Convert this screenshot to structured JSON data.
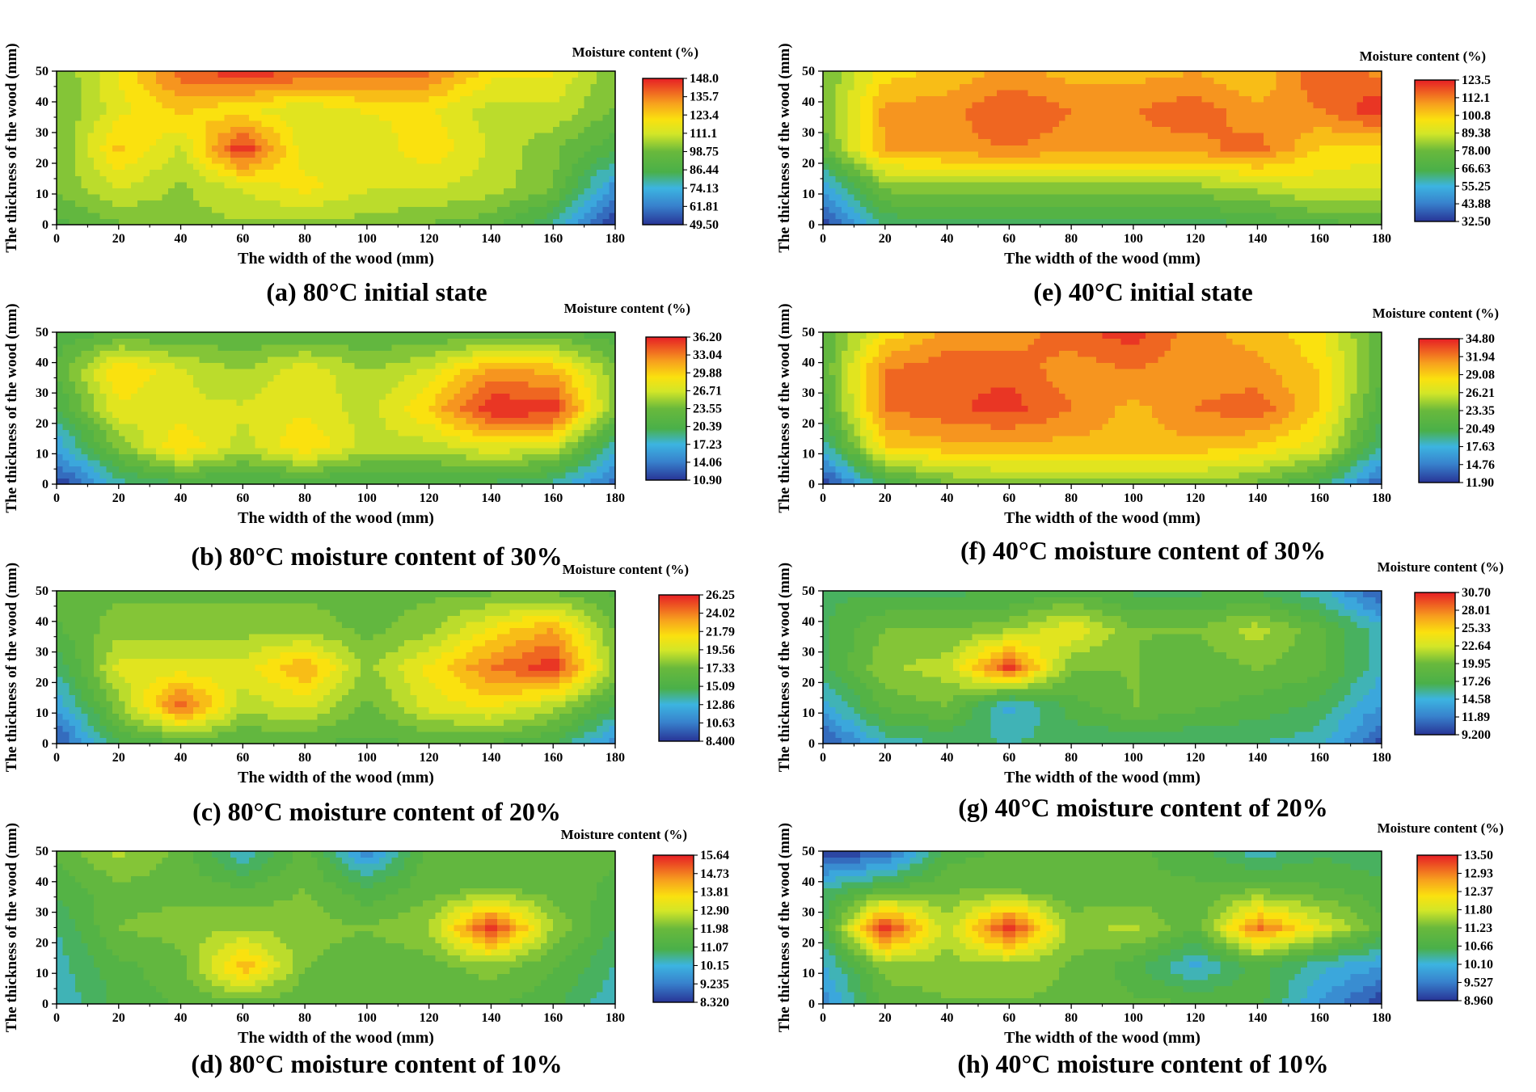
{
  "figure": {
    "x_unit": "mm",
    "y_unit": "mm"
  },
  "chart_data": [
    {
      "type": "heatmap",
      "id": "a",
      "caption": "(a) 80°C  initial state",
      "xlabel": "The width of the wood (mm)",
      "ylabel": "The thickness of the wood (mm)",
      "colorbar_title": "Moisture content (%)",
      "xlim": [
        0,
        180
      ],
      "ylim": [
        0,
        50
      ],
      "x_ticks": [
        0,
        20,
        40,
        60,
        80,
        100,
        120,
        140,
        160,
        180
      ],
      "y_ticks": [
        0,
        10,
        20,
        30,
        40,
        50
      ],
      "colorbar_labels": [
        "148.0",
        "135.7",
        "123.4",
        "111.1",
        "98.75",
        "86.44",
        "74.13",
        "61.81",
        "49.50"
      ],
      "x": [
        0,
        20,
        40,
        60,
        80,
        100,
        120,
        140,
        160,
        180
      ],
      "y": [
        0,
        12.5,
        25,
        37.5,
        50
      ],
      "z": [
        [
          90,
          98,
          102,
          104,
          103,
          102,
          98,
          95,
          80,
          48
        ],
        [
          100,
          112,
          104,
          112,
          120,
          112,
          112,
          108,
          100,
          65
        ],
        [
          98,
          125,
          110,
          148,
          112,
          112,
          122,
          110,
          100,
          88
        ],
        [
          98,
          115,
          125,
          118,
          112,
          118,
          118,
          108,
          110,
          98
        ],
        [
          98,
          118,
          140,
          146,
          142,
          140,
          138,
          120,
          118,
          100
        ]
      ]
    },
    {
      "type": "heatmap",
      "id": "b",
      "caption": "(b) 80°C  moisture content of 30%",
      "xlabel": "The width of the wood (mm)",
      "ylabel": "The thickness of the wood (mm)",
      "colorbar_title": "Moisture content (%)",
      "xlim": [
        0,
        180
      ],
      "ylim": [
        0,
        50
      ],
      "x_ticks": [
        0,
        20,
        40,
        60,
        80,
        100,
        120,
        140,
        160,
        180
      ],
      "y_ticks": [
        0,
        10,
        20,
        30,
        40,
        50
      ],
      "colorbar_labels": [
        "36.20",
        "33.04",
        "29.88",
        "26.71",
        "23.55",
        "20.39",
        "17.23",
        "14.06",
        "10.90"
      ],
      "x": [
        0,
        20,
        40,
        60,
        80,
        100,
        120,
        140,
        160,
        180
      ],
      "y": [
        0,
        12.5,
        25,
        37.5,
        50
      ],
      "z": [
        [
          11,
          18,
          20,
          20,
          20,
          20,
          20,
          20,
          18,
          13
        ],
        [
          16,
          24,
          30,
          26,
          30,
          26,
          26,
          28,
          27,
          18
        ],
        [
          20,
          28,
          27,
          27,
          28,
          26,
          30,
          36,
          36,
          24
        ],
        [
          22,
          30,
          27,
          25,
          28,
          25,
          27,
          32,
          31,
          24
        ],
        [
          21,
          22,
          22,
          22,
          22,
          22,
          22,
          22,
          22,
          21
        ]
      ]
    },
    {
      "type": "heatmap",
      "id": "c",
      "caption": "(c) 80°C  moisture content of 20%",
      "xlabel": "The width of the wood (mm)",
      "ylabel": "The thickness of the wood (mm)",
      "colorbar_title": "Moisture content (%)",
      "xlim": [
        0,
        180
      ],
      "ylim": [
        0,
        50
      ],
      "x_ticks": [
        0,
        20,
        40,
        60,
        80,
        100,
        120,
        140,
        160,
        180
      ],
      "y_ticks": [
        0,
        10,
        20,
        30,
        40,
        50
      ],
      "colorbar_labels": [
        "26.25",
        "24.02",
        "21.79",
        "19.56",
        "17.33",
        "15.09",
        "12.86",
        "10.63",
        "8.400"
      ],
      "x": [
        0,
        20,
        40,
        60,
        80,
        100,
        120,
        140,
        160,
        180
      ],
      "y": [
        0,
        12.5,
        25,
        37.5,
        50
      ],
      "z": [
        [
          9,
          15,
          16,
          16,
          16,
          16,
          16,
          16,
          15,
          11
        ],
        [
          12,
          18,
          25,
          19,
          20,
          17,
          20,
          21,
          19,
          15
        ],
        [
          14,
          20,
          20,
          20,
          23,
          18,
          21,
          24,
          26,
          18
        ],
        [
          16,
          18,
          18,
          18,
          18,
          17,
          18,
          21,
          23,
          17
        ],
        [
          17,
          17,
          17,
          17,
          17,
          17,
          17,
          17,
          17,
          16
        ]
      ]
    },
    {
      "type": "heatmap",
      "id": "d",
      "caption": "(d) 80°C  moisture content of 10%",
      "xlabel": "The width of the wood (mm)",
      "ylabel": "The thickness of the wood (mm)",
      "colorbar_title": "Moisture content (%)",
      "xlim": [
        0,
        180
      ],
      "ylim": [
        0,
        50
      ],
      "x_ticks": [
        0,
        20,
        40,
        60,
        80,
        100,
        120,
        140,
        160,
        180
      ],
      "y_ticks": [
        0,
        10,
        20,
        30,
        40,
        50
      ],
      "colorbar_labels": [
        "15.64",
        "14.73",
        "13.81",
        "12.90",
        "11.98",
        "11.07",
        "10.15",
        "9.235",
        "8.320"
      ],
      "x": [
        0,
        20,
        40,
        60,
        80,
        100,
        120,
        140,
        160,
        180
      ],
      "y": [
        0,
        12.5,
        25,
        37.5,
        50
      ],
      "z": [
        [
          10.2,
          11.2,
          11.6,
          11.8,
          11.6,
          11.6,
          11.6,
          11.6,
          11.2,
          10.2
        ],
        [
          10.4,
          11.4,
          11.8,
          14.2,
          12.0,
          11.6,
          11.8,
          12.2,
          11.6,
          10.6
        ],
        [
          10.6,
          12.0,
          12.2,
          12.4,
          12.2,
          12.0,
          12.4,
          15.6,
          12.4,
          11.0
        ],
        [
          11.2,
          11.8,
          11.8,
          11.6,
          12.0,
          11.2,
          11.8,
          12.0,
          11.8,
          11.4
        ],
        [
          11.6,
          12.6,
          11.8,
          10.2,
          11.8,
          9.4,
          11.8,
          11.8,
          11.8,
          11.6
        ]
      ]
    },
    {
      "type": "heatmap",
      "id": "e",
      "caption": "(e) 40°C  initial state",
      "xlabel": "The width of the wood (mm)",
      "ylabel": "The thickness of the wood (mm)",
      "colorbar_title": "Moisture content (%)",
      "xlim": [
        0,
        180
      ],
      "ylim": [
        0,
        50
      ],
      "x_ticks": [
        0,
        20,
        40,
        60,
        80,
        100,
        120,
        140,
        160,
        180
      ],
      "y_ticks": [
        0,
        10,
        20,
        30,
        40,
        50
      ],
      "colorbar_labels": [
        "123.5",
        "112.1",
        "100.8",
        "89.38",
        "78.00",
        "66.63",
        "55.25",
        "43.88",
        "32.50"
      ],
      "x": [
        0,
        20,
        40,
        60,
        80,
        100,
        120,
        140,
        160,
        180
      ],
      "y": [
        0,
        12.5,
        25,
        37.5,
        50
      ],
      "z": [
        [
          35,
          62,
          64,
          64,
          64,
          64,
          64,
          66,
          70,
          72
        ],
        [
          50,
          80,
          82,
          82,
          82,
          82,
          82,
          86,
          92,
          90
        ],
        [
          75,
          108,
          110,
          112,
          110,
          110,
          110,
          115,
          100,
          98
        ],
        [
          78,
          108,
          110,
          118,
          112,
          112,
          116,
          108,
          112,
          123
        ],
        [
          78,
          98,
          102,
          108,
          104,
          104,
          106,
          100,
          118,
          110
        ]
      ]
    },
    {
      "type": "heatmap",
      "id": "f",
      "caption": "(f) 40°C  moisture content of 30%",
      "xlabel": "The width of the wood (mm)",
      "ylabel": "The thickness of the wood (mm)",
      "colorbar_title": "Moisture content (%)",
      "xlim": [
        0,
        180
      ],
      "ylim": [
        0,
        50
      ],
      "x_ticks": [
        0,
        20,
        40,
        60,
        80,
        100,
        120,
        140,
        160,
        180
      ],
      "y_ticks": [
        0,
        10,
        20,
        30,
        40,
        50
      ],
      "colorbar_labels": [
        "34.80",
        "31.94",
        "29.08",
        "26.21",
        "23.35",
        "20.49",
        "17.63",
        "14.76",
        "11.90"
      ],
      "x": [
        0,
        20,
        40,
        60,
        80,
        100,
        120,
        140,
        160,
        180
      ],
      "y": [
        0,
        12.5,
        25,
        37.5,
        50
      ],
      "z": [
        [
          12,
          20,
          23,
          24,
          24,
          24,
          24,
          23,
          20,
          13
        ],
        [
          18,
          29,
          30,
          30,
          30,
          30,
          30,
          29,
          27,
          19
        ],
        [
          21,
          32,
          33,
          34,
          32,
          30,
          32,
          33,
          29,
          21
        ],
        [
          22,
          32,
          33,
          33,
          31,
          32,
          31,
          31,
          29,
          22
        ],
        [
          22,
          28,
          31,
          31,
          33,
          34,
          31,
          30,
          28,
          22
        ]
      ]
    },
    {
      "type": "heatmap",
      "id": "g",
      "caption": "(g) 40°C  moisture content of 20%",
      "xlabel": "The width of the wood (mm)",
      "ylabel": "The thickness of the wood (mm)",
      "colorbar_title": "Moisture content (%)",
      "xlim": [
        0,
        180
      ],
      "ylim": [
        0,
        50
      ],
      "x_ticks": [
        0,
        20,
        40,
        60,
        80,
        100,
        120,
        140,
        160,
        180
      ],
      "y_ticks": [
        0,
        10,
        20,
        30,
        40,
        50
      ],
      "colorbar_labels": [
        "30.70",
        "28.01",
        "25.33",
        "22.64",
        "19.95",
        "17.26",
        "14.58",
        "11.89",
        "9.200"
      ],
      "x": [
        0,
        20,
        40,
        60,
        80,
        100,
        120,
        140,
        160,
        180
      ],
      "y": [
        0,
        12.5,
        25,
        37.5,
        50
      ],
      "z": [
        [
          10,
          15,
          16,
          16,
          16,
          16,
          16,
          16,
          15,
          10
        ],
        [
          14,
          19,
          20,
          14,
          18,
          20,
          19,
          18,
          17,
          13
        ],
        [
          17,
          21,
          22,
          30,
          20,
          20,
          19,
          20,
          19,
          15
        ],
        [
          17,
          20,
          20,
          21,
          24,
          20,
          20,
          22,
          19,
          15
        ],
        [
          17,
          17,
          17,
          17,
          18,
          17,
          17,
          17,
          15,
          10
        ]
      ]
    },
    {
      "type": "heatmap",
      "id": "h",
      "caption": "(h) 40°C  moisture content of 10%",
      "xlabel": "The width of the wood (mm)",
      "ylabel": "The thickness of the wood (mm)",
      "colorbar_title": "Moisture content (%)",
      "xlim": [
        0,
        180
      ],
      "ylim": [
        0,
        50
      ],
      "x_ticks": [
        0,
        20,
        40,
        60,
        80,
        100,
        120,
        140,
        160,
        180
      ],
      "y_ticks": [
        0,
        10,
        20,
        30,
        40,
        50
      ],
      "colorbar_labels": [
        "13.50",
        "12.93",
        "12.37",
        "11.80",
        "11.23",
        "10.66",
        "10.10",
        "9.527",
        "8.960"
      ],
      "x": [
        0,
        20,
        40,
        60,
        80,
        100,
        120,
        140,
        160,
        180
      ],
      "y": [
        0,
        12.5,
        25,
        37.5,
        50
      ],
      "z": [
        [
          9.6,
          11.0,
          11.2,
          11.2,
          11.2,
          11.0,
          11.0,
          10.8,
          9.8,
          9.0
        ],
        [
          10.0,
          11.4,
          11.4,
          11.4,
          11.2,
          10.8,
          10.0,
          10.8,
          10.2,
          9.8
        ],
        [
          10.6,
          13.5,
          11.6,
          13.5,
          11.4,
          11.6,
          11.0,
          13.0,
          12.0,
          11.0
        ],
        [
          10.4,
          11.0,
          11.2,
          11.2,
          11.0,
          11.0,
          11.0,
          11.2,
          11.0,
          10.8
        ],
        [
          9.0,
          9.2,
          10.8,
          11.0,
          11.0,
          11.0,
          10.8,
          10.2,
          10.6,
          10.4
        ]
      ]
    }
  ]
}
